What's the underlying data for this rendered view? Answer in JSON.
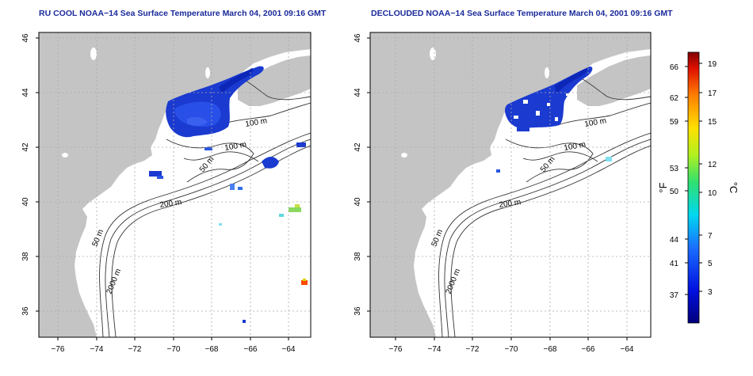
{
  "left_panel": {
    "title": "RU COOL NOAA−14 Sea Surface Temperature March 04, 2001 09:16 GMT",
    "x_ticks": [
      "−76",
      "−74",
      "−72",
      "−70",
      "−68",
      "−66",
      "−64"
    ],
    "y_ticks": [
      "46",
      "44",
      "42",
      "40",
      "38",
      "36"
    ],
    "contours": [
      "100 m",
      "100 m",
      "50 m",
      "200 m",
      "50 m",
      "2000 m"
    ]
  },
  "right_panel": {
    "title": "DECLOUDED NOAA−14 Sea Surface Temperature March 04, 2001 09:16 GMT",
    "x_ticks": [
      "−76",
      "−74",
      "−72",
      "−70",
      "−68",
      "−66",
      "−64"
    ],
    "y_ticks": [
      "46",
      "44",
      "42",
      "40",
      "38",
      "36"
    ],
    "contours": [
      "100 m",
      "100 m",
      "50 m",
      "200 m",
      "50 m",
      "2000 m"
    ]
  },
  "colorbar": {
    "f_label": "°F",
    "c_label": "°C",
    "f_ticks": [
      "66",
      "62",
      "59",
      "53",
      "50",
      "44",
      "41",
      "37"
    ],
    "c_ticks": [
      "19",
      "17",
      "15",
      "12",
      "10",
      "7",
      "5",
      "3"
    ]
  },
  "colors": {
    "land": "#c4c4c4",
    "cold": "#1a3ad0",
    "warm": "#ff2a00"
  }
}
